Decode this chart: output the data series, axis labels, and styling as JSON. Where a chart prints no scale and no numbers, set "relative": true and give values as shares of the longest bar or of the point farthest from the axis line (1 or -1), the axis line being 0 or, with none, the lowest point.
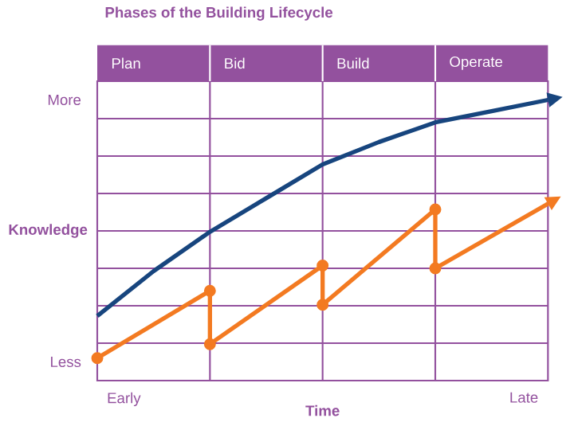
{
  "chart_data": {
    "type": "line",
    "title": "Phases of the Building Lifecycle",
    "xlabel": "Time",
    "ylabel": "Knowledge",
    "categories": [
      null,
      null,
      null,
      null,
      null,
      null,
      null,
      null,
      null
    ],
    "relative": true,
    "annotations": [
      "More",
      "Less",
      "Early",
      "Late",
      "Plan",
      "Bid",
      "Build",
      "Operate"
    ],
    "grid": true,
    "series": [
      {
        "color": "#17457e",
        "marker": "none",
        "values": [
          0.23,
          0.39,
          0.53,
          0.65,
          0.77,
          0.85,
          0.92,
          0.96,
          1
        ]
      },
      {
        "color": "#f37a21",
        "marker": "circle",
        "values": [
          0.08,
          null,
          0.32,
          null,
          null,
          null,
          null,
          null,
          null
        ]
      },
      {
        "color": "#f37a21",
        "marker": "circle",
        "values": [
          null,
          null,
          0.13,
          null,
          0.41,
          null,
          null,
          null,
          null
        ]
      },
      {
        "color": "#f37a21",
        "marker": "circle",
        "values": [
          null,
          null,
          null,
          null,
          0.27,
          null,
          0.61,
          null,
          null
        ]
      },
      {
        "color": "#f37a21",
        "marker": "circle",
        "values": [
          null,
          null,
          null,
          null,
          null,
          null,
          0.4,
          null,
          0.63
        ]
      }
    ]
  }
}
